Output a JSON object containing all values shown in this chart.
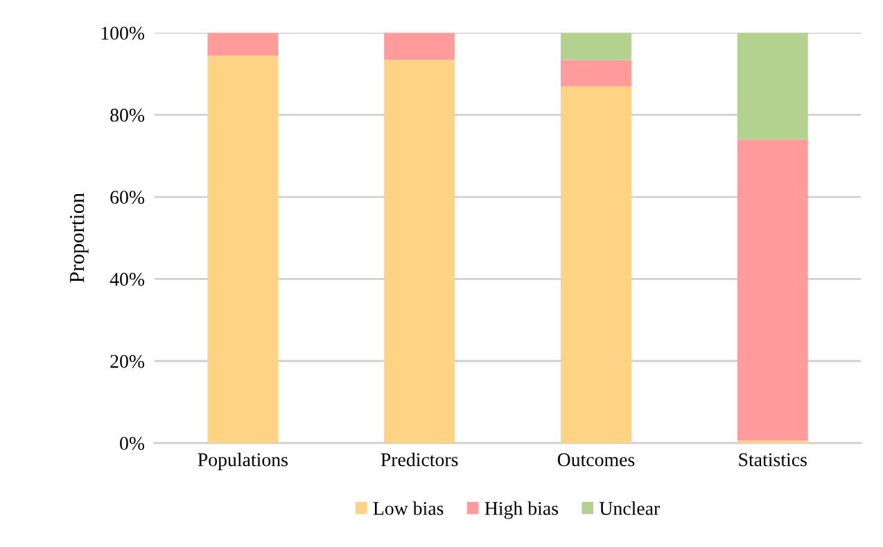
{
  "chart_data": {
    "type": "bar",
    "stacked": true,
    "ylabel": "Proportion",
    "categories": [
      "Populations",
      "Predictors",
      "Outcomes",
      "Statistics"
    ],
    "series": [
      {
        "name": "Low bias",
        "color": "#fed384",
        "values": [
          94.4,
          93.4,
          86.9,
          0.6
        ]
      },
      {
        "name": "High bias",
        "color": "#ff9b9a",
        "values": [
          5.6,
          6.6,
          6.5,
          73.4
        ]
      },
      {
        "name": "Unclear",
        "color": "#b3d18f",
        "values": [
          0,
          0,
          6.6,
          26
        ]
      }
    ],
    "ylim": [
      0,
      100
    ],
    "yticks": [
      {
        "value": 0,
        "label": "0%"
      },
      {
        "value": 20,
        "label": "20%"
      },
      {
        "value": 40,
        "label": "40%"
      },
      {
        "value": 60,
        "label": "60%"
      },
      {
        "value": 80,
        "label": "80%"
      },
      {
        "value": 100,
        "label": "100%"
      }
    ],
    "grid": "y",
    "legend": "bottom"
  }
}
